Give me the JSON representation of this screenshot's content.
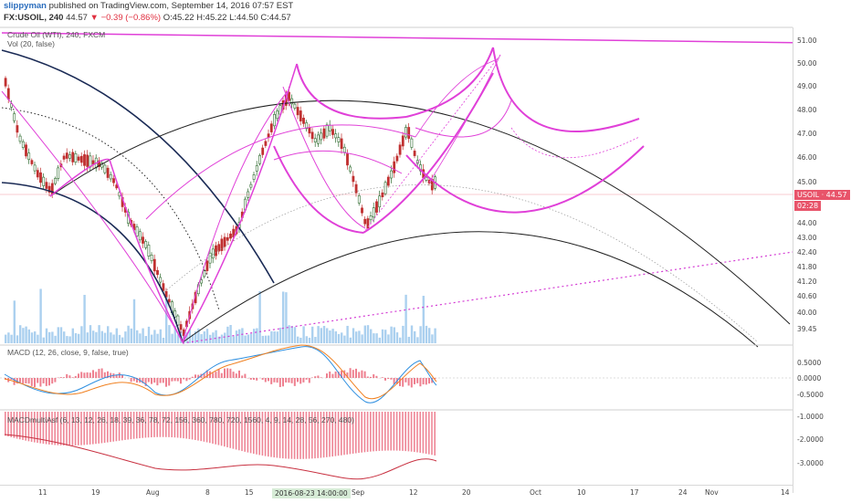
{
  "header": {
    "line1": {
      "user": "slippyman",
      "text": "published on TradingView.com, September 14, 2016 07:57 EST"
    },
    "line2": {
      "symbol": "FX:USOIL, 240",
      "last": "44.57",
      "change": "▼ −0.39 (−0.86%)",
      "open": "O:45.22",
      "high": "H:45.22",
      "low": "L:44.50",
      "close": "C:44.57"
    }
  },
  "price_panel": {
    "title": "Crude Oil (WTI), 240, FXCM",
    "volume_label": "Vol (20, false)"
  },
  "macd_panel": {
    "label": "MACD (12, 26, close, 9, false, true)"
  },
  "macd2_panel": {
    "label": "MACDmultiAsf (6, 13, 12, 26, 18, 39, 36, 78, 72, 156, 360, 780, 720, 1560, 4, 9, 14, 28, 56, 270, 480)"
  },
  "price_axis": [
    "51.00",
    "50.00",
    "49.00",
    "48.00",
    "47.00",
    "46.00",
    "45.00",
    "44.00",
    "43.00",
    "42.40",
    "41.80",
    "41.20",
    "40.60",
    "40.00",
    "39.45"
  ],
  "macd_axis": [
    "0.5000",
    "0.0000",
    "-0.5000"
  ],
  "macd2_axis": [
    "-1.0000",
    "-2.0000",
    "-3.0000"
  ],
  "current_price": "USOIL · 44.57",
  "countdown": "02:28",
  "x_axis": [
    "11",
    "19",
    "Aug",
    "8",
    "15",
    "Sep",
    "12",
    "20",
    "Oct",
    "10",
    "17",
    "24",
    "Nov",
    "14"
  ],
  "cursor_date": "2016-08-23 14:00:00",
  "colors": {
    "accent": "#e040d8",
    "up": "#2d6a2d",
    "down": "#c03030"
  }
}
